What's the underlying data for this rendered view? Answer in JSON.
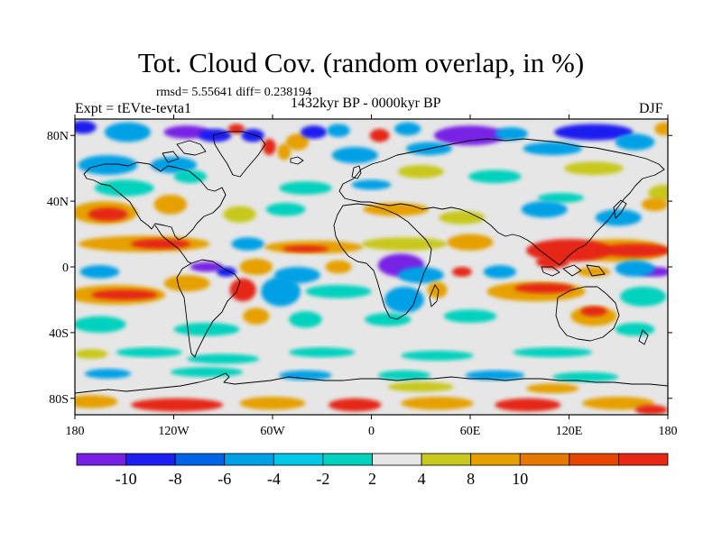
{
  "header": {
    "title": "Tot. Cloud Cov. (random overlap, in %)",
    "stats": "rmsd= 5.55641 diff= 0.238194",
    "experiment": "Expt = tEVte-tevta1",
    "period": "1432kyr BP - 0000kyr BP",
    "season": "DJF"
  },
  "map": {
    "projection": "cylindrical equidistant",
    "lon_range": [
      -180,
      180
    ],
    "lat_range": [
      -90,
      90
    ],
    "lat_ticks": [
      {
        "value": 80,
        "label": "80N"
      },
      {
        "value": 40,
        "label": "40N"
      },
      {
        "value": 0,
        "label": "0"
      },
      {
        "value": -40,
        "label": "40S"
      },
      {
        "value": -80,
        "label": "80S"
      }
    ],
    "lon_ticks": [
      {
        "value": -180,
        "label": "180"
      },
      {
        "value": -120,
        "label": "120W"
      },
      {
        "value": -60,
        "label": "60W"
      },
      {
        "value": 0,
        "label": "0"
      },
      {
        "value": 60,
        "label": "60E"
      },
      {
        "value": 120,
        "label": "120E"
      },
      {
        "value": 180,
        "label": "180"
      }
    ],
    "background_color": "#e6e6e6",
    "field_blobs": [
      {
        "lon": -175,
        "lat": 85,
        "rlon": 8,
        "rlat": 4,
        "c": "#1e1ef0"
      },
      {
        "lon": -148,
        "lat": 82,
        "rlon": 14,
        "rlat": 6,
        "c": "#00a0e6"
      },
      {
        "lon": -112,
        "lat": 82,
        "rlon": 14,
        "rlat": 4,
        "c": "#7820e6"
      },
      {
        "lon": -95,
        "lat": 80,
        "rlon": 10,
        "rlat": 4,
        "c": "#1e1ef0"
      },
      {
        "lon": -82,
        "lat": 84,
        "rlon": 5,
        "rlat": 3,
        "c": "#e62814"
      },
      {
        "lon": -72,
        "lat": 80,
        "rlon": 7,
        "rlat": 4,
        "c": "#1e1ef0"
      },
      {
        "lon": -62,
        "lat": 73,
        "rlon": 4,
        "rlat": 5,
        "c": "#e62814"
      },
      {
        "lon": -53,
        "lat": 70,
        "rlon": 4,
        "rlat": 5,
        "c": "#e6a000"
      },
      {
        "lon": -45,
        "lat": 76,
        "rlon": 7,
        "rlat": 5,
        "c": "#e6a000"
      },
      {
        "lon": -35,
        "lat": 82,
        "rlon": 8,
        "rlat": 4,
        "c": "#1e1ef0"
      },
      {
        "lon": -20,
        "lat": 83,
        "rlon": 7,
        "rlat": 4,
        "c": "#00a0e6"
      },
      {
        "lon": 5,
        "lat": 80,
        "rlon": 6,
        "rlat": 4,
        "c": "#e62814"
      },
      {
        "lon": 22,
        "lat": 84,
        "rlon": 8,
        "rlat": 4,
        "c": "#00a0e6"
      },
      {
        "lon": 60,
        "lat": 80,
        "rlon": 22,
        "rlat": 6,
        "c": "#7820e6"
      },
      {
        "lon": 85,
        "lat": 81,
        "rlon": 10,
        "rlat": 4,
        "c": "#00a0e6"
      },
      {
        "lon": 135,
        "lat": 82,
        "rlon": 24,
        "rlat": 5,
        "c": "#1e1ef0"
      },
      {
        "lon": 160,
        "lat": 76,
        "rlon": 12,
        "rlat": 5,
        "c": "#00a0e6"
      },
      {
        "lon": 178,
        "lat": 84,
        "rlon": 6,
        "rlat": 4,
        "c": "#e6a000"
      },
      {
        "lon": 110,
        "lat": 72,
        "rlon": 18,
        "rlat": 4,
        "c": "#00a0e6"
      },
      {
        "lon": 35,
        "lat": 72,
        "rlon": 14,
        "rlat": 4,
        "c": "#00a0e6"
      },
      {
        "lon": -160,
        "lat": 62,
        "rlon": 18,
        "rlat": 6,
        "c": "#00a0e6"
      },
      {
        "lon": -120,
        "lat": 62,
        "rlon": 14,
        "rlat": 5,
        "c": "#00a0e6"
      },
      {
        "lon": -10,
        "lat": 68,
        "rlon": 14,
        "rlat": 5,
        "c": "#00a0e6"
      },
      {
        "lon": 30,
        "lat": 58,
        "rlon": 14,
        "rlat": 4,
        "c": "#c8c81e"
      },
      {
        "lon": 135,
        "lat": 60,
        "rlon": 18,
        "rlat": 4,
        "c": "#c8c81e"
      },
      {
        "lon": -150,
        "lat": 48,
        "rlon": 18,
        "rlat": 5,
        "c": "#00d2be"
      },
      {
        "lon": -110,
        "lat": 55,
        "rlon": 10,
        "rlat": 4,
        "c": "#00d2be"
      },
      {
        "lon": -40,
        "lat": 48,
        "rlon": 16,
        "rlat": 4,
        "c": "#00d2be"
      },
      {
        "lon": 0,
        "lat": 50,
        "rlon": 12,
        "rlat": 3,
        "c": "#00a0e6"
      },
      {
        "lon": 75,
        "lat": 55,
        "rlon": 16,
        "rlat": 4,
        "c": "#00d2be"
      },
      {
        "lon": 115,
        "lat": 42,
        "rlon": 14,
        "rlat": 3,
        "c": "#00d2be"
      },
      {
        "lon": 178,
        "lat": 45,
        "rlon": 10,
        "rlat": 5,
        "c": "#c8c81e"
      },
      {
        "lon": -162,
        "lat": 33,
        "rlon": 20,
        "rlat": 7,
        "c": "#e6a000"
      },
      {
        "lon": -160,
        "lat": 32,
        "rlon": 12,
        "rlat": 4,
        "c": "#e62814"
      },
      {
        "lon": -122,
        "lat": 38,
        "rlon": 10,
        "rlat": 6,
        "c": "#e6a000"
      },
      {
        "lon": -80,
        "lat": 32,
        "rlon": 10,
        "rlat": 5,
        "c": "#c8c81e"
      },
      {
        "lon": -52,
        "lat": 35,
        "rlon": 12,
        "rlat": 4,
        "c": "#00d2be"
      },
      {
        "lon": 15,
        "lat": 35,
        "rlon": 20,
        "rlat": 4,
        "c": "#e6a000"
      },
      {
        "lon": 55,
        "lat": 30,
        "rlon": 14,
        "rlat": 4,
        "c": "#c8c81e"
      },
      {
        "lon": 105,
        "lat": 35,
        "rlon": 14,
        "rlat": 5,
        "c": "#00a0e6"
      },
      {
        "lon": 150,
        "lat": 30,
        "rlon": 14,
        "rlat": 5,
        "c": "#00a0e6"
      },
      {
        "lon": 172,
        "lat": 38,
        "rlon": 8,
        "rlat": 4,
        "c": "#e6a000"
      },
      {
        "lon": -138,
        "lat": 14,
        "rlon": 40,
        "rlat": 5,
        "c": "#e6a000"
      },
      {
        "lon": -128,
        "lat": 14,
        "rlon": 18,
        "rlat": 3,
        "c": "#e62814"
      },
      {
        "lon": -75,
        "lat": 14,
        "rlon": 10,
        "rlat": 4,
        "c": "#00a0e6"
      },
      {
        "lon": -35,
        "lat": 12,
        "rlon": 30,
        "rlat": 4,
        "c": "#e6a000"
      },
      {
        "lon": -40,
        "lat": 11,
        "rlon": 14,
        "rlat": 2,
        "c": "#e62814"
      },
      {
        "lon": 20,
        "lat": 14,
        "rlon": 26,
        "rlat": 4,
        "c": "#c8c81e"
      },
      {
        "lon": 60,
        "lat": 15,
        "rlon": 14,
        "rlat": 5,
        "c": "#e6a000"
      },
      {
        "lon": 150,
        "lat": 10,
        "rlon": 30,
        "rlat": 7,
        "c": "#e6a000"
      },
      {
        "lon": 120,
        "lat": 10,
        "rlon": 26,
        "rlat": 7,
        "c": "#e62814"
      },
      {
        "lon": 160,
        "lat": 10,
        "rlon": 22,
        "rlat": 4,
        "c": "#e62814"
      },
      {
        "lon": 110,
        "lat": 3,
        "rlon": 10,
        "rlat": 4,
        "c": "#e62814"
      },
      {
        "lon": -165,
        "lat": -3,
        "rlon": 12,
        "rlat": 4,
        "c": "#00a0e6"
      },
      {
        "lon": -100,
        "lat": 0,
        "rlon": 10,
        "rlat": 3,
        "c": "#7820e6"
      },
      {
        "lon": -88,
        "lat": -3,
        "rlon": 6,
        "rlat": 3,
        "c": "#1e1ef0"
      },
      {
        "lon": -70,
        "lat": 0,
        "rlon": 10,
        "rlat": 5,
        "c": "#e6a000"
      },
      {
        "lon": -45,
        "lat": -5,
        "rlon": 14,
        "rlat": 5,
        "c": "#00a0e6"
      },
      {
        "lon": -20,
        "lat": 0,
        "rlon": 8,
        "rlat": 4,
        "c": "#e6a000"
      },
      {
        "lon": 18,
        "lat": 1,
        "rlon": 14,
        "rlat": 7,
        "c": "#7820e6"
      },
      {
        "lon": 30,
        "lat": -5,
        "rlon": 14,
        "rlat": 5,
        "c": "#00a0e6"
      },
      {
        "lon": 55,
        "lat": -3,
        "rlon": 6,
        "rlat": 3,
        "c": "#e62814"
      },
      {
        "lon": 78,
        "lat": -3,
        "rlon": 10,
        "rlat": 4,
        "c": "#00a0e6"
      },
      {
        "lon": 172,
        "lat": -3,
        "rlon": 10,
        "rlat": 3,
        "c": "#7820e6"
      },
      {
        "lon": 160,
        "lat": -1,
        "rlon": 12,
        "rlat": 5,
        "c": "#00a0e6"
      },
      {
        "lon": 135,
        "lat": -3,
        "rlon": 10,
        "rlat": 3,
        "c": "#e6a000"
      },
      {
        "lon": -155,
        "lat": -17,
        "rlon": 30,
        "rlat": 6,
        "c": "#e6a000"
      },
      {
        "lon": -150,
        "lat": -17,
        "rlon": 20,
        "rlat": 3,
        "c": "#e62814"
      },
      {
        "lon": -112,
        "lat": -10,
        "rlon": 14,
        "rlat": 5,
        "c": "#e6a000"
      },
      {
        "lon": -78,
        "lat": -14,
        "rlon": 8,
        "rlat": 7,
        "c": "#e62814"
      },
      {
        "lon": -55,
        "lat": -15,
        "rlon": 12,
        "rlat": 9,
        "c": "#00a0e6"
      },
      {
        "lon": -20,
        "lat": -15,
        "rlon": 20,
        "rlat": 4,
        "c": "#00d2be"
      },
      {
        "lon": 20,
        "lat": -20,
        "rlon": 12,
        "rlat": 8,
        "c": "#00a0e6"
      },
      {
        "lon": 40,
        "lat": -14,
        "rlon": 6,
        "rlat": 5,
        "c": "#e6a000"
      },
      {
        "lon": 100,
        "lat": -15,
        "rlon": 30,
        "rlat": 6,
        "c": "#e6a000"
      },
      {
        "lon": 105,
        "lat": -13,
        "rlon": 18,
        "rlat": 3,
        "c": "#e62814"
      },
      {
        "lon": 165,
        "lat": -18,
        "rlon": 14,
        "rlat": 6,
        "c": "#00d2be"
      },
      {
        "lon": -165,
        "lat": -35,
        "rlon": 16,
        "rlat": 5,
        "c": "#00d2be"
      },
      {
        "lon": -100,
        "lat": -38,
        "rlon": 20,
        "rlat": 4,
        "c": "#00d2be"
      },
      {
        "lon": -70,
        "lat": -30,
        "rlon": 8,
        "rlat": 5,
        "c": "#e6a000"
      },
      {
        "lon": -40,
        "lat": -32,
        "rlon": 10,
        "rlat": 5,
        "c": "#00d2be"
      },
      {
        "lon": 10,
        "lat": -32,
        "rlon": 14,
        "rlat": 4,
        "c": "#00d2be"
      },
      {
        "lon": 60,
        "lat": -30,
        "rlon": 16,
        "rlat": 4,
        "c": "#00d2be"
      },
      {
        "lon": 135,
        "lat": -30,
        "rlon": 14,
        "rlat": 6,
        "c": "#e6a000"
      },
      {
        "lon": 135,
        "lat": -27,
        "rlon": 8,
        "rlat": 3,
        "c": "#e62814"
      },
      {
        "lon": 160,
        "lat": -38,
        "rlon": 12,
        "rlat": 4,
        "c": "#00d2be"
      },
      {
        "lon": -170,
        "lat": -53,
        "rlon": 10,
        "rlat": 3,
        "c": "#c8c81e"
      },
      {
        "lon": -135,
        "lat": -52,
        "rlon": 20,
        "rlat": 3,
        "c": "#00d2be"
      },
      {
        "lon": -90,
        "lat": -56,
        "rlon": 22,
        "rlat": 3,
        "c": "#00d2be"
      },
      {
        "lon": -30,
        "lat": -52,
        "rlon": 20,
        "rlat": 3,
        "c": "#00d2be"
      },
      {
        "lon": 40,
        "lat": -54,
        "rlon": 22,
        "rlat": 3,
        "c": "#00d2be"
      },
      {
        "lon": 110,
        "lat": -52,
        "rlon": 24,
        "rlat": 3,
        "c": "#00d2be"
      },
      {
        "lon": -160,
        "lat": -65,
        "rlon": 14,
        "rlat": 3,
        "c": "#00a0e6"
      },
      {
        "lon": -100,
        "lat": -64,
        "rlon": 22,
        "rlat": 3,
        "c": "#00d2be"
      },
      {
        "lon": -40,
        "lat": -66,
        "rlon": 16,
        "rlat": 3,
        "c": "#00a0e6"
      },
      {
        "lon": 20,
        "lat": -66,
        "rlon": 16,
        "rlat": 3,
        "c": "#00d2be"
      },
      {
        "lon": 75,
        "lat": -66,
        "rlon": 18,
        "rlat": 3,
        "c": "#00a0e6"
      },
      {
        "lon": 130,
        "lat": -67,
        "rlon": 20,
        "rlat": 3,
        "c": "#00d2be"
      },
      {
        "lon": 30,
        "lat": -73,
        "rlon": 20,
        "rlat": 3,
        "c": "#c8c81e"
      },
      {
        "lon": 110,
        "lat": -74,
        "rlon": 16,
        "rlat": 3,
        "c": "#e6a000"
      },
      {
        "lon": -170,
        "lat": -82,
        "rlon": 16,
        "rlat": 4,
        "c": "#e6a000"
      },
      {
        "lon": -118,
        "lat": -84,
        "rlon": 28,
        "rlat": 4,
        "c": "#e62814"
      },
      {
        "lon": -60,
        "lat": -83,
        "rlon": 20,
        "rlat": 4,
        "c": "#e6a000"
      },
      {
        "lon": -10,
        "lat": -84,
        "rlon": 16,
        "rlat": 4,
        "c": "#e62814"
      },
      {
        "lon": 40,
        "lat": -83,
        "rlon": 22,
        "rlat": 4,
        "c": "#e6a000"
      },
      {
        "lon": 95,
        "lat": -84,
        "rlon": 20,
        "rlat": 4,
        "c": "#e62814"
      },
      {
        "lon": 150,
        "lat": -83,
        "rlon": 22,
        "rlat": 4,
        "c": "#e6a000"
      },
      {
        "lon": 170,
        "lat": -87,
        "rlon": 10,
        "rlat": 3,
        "c": "#e62814"
      }
    ]
  },
  "colorbar": {
    "colors": [
      "#7820e6",
      "#1e1ef0",
      "#0064e6",
      "#00a0e6",
      "#00c8e6",
      "#00d2be",
      "#e6e6e6",
      "#c8c81e",
      "#e6a000",
      "#e67800",
      "#e64600",
      "#e62814"
    ],
    "labels": [
      {
        "boundary": 1,
        "text": "-10"
      },
      {
        "boundary": 2,
        "text": "-8"
      },
      {
        "boundary": 3,
        "text": "-6"
      },
      {
        "boundary": 4,
        "text": "-4"
      },
      {
        "boundary": 5,
        "text": "-2"
      },
      {
        "boundary": 6,
        "text": "2"
      },
      {
        "boundary": 7,
        "text": "4"
      },
      {
        "boundary": 8,
        "text": "8"
      },
      {
        "boundary": 9,
        "text": "10"
      }
    ]
  }
}
